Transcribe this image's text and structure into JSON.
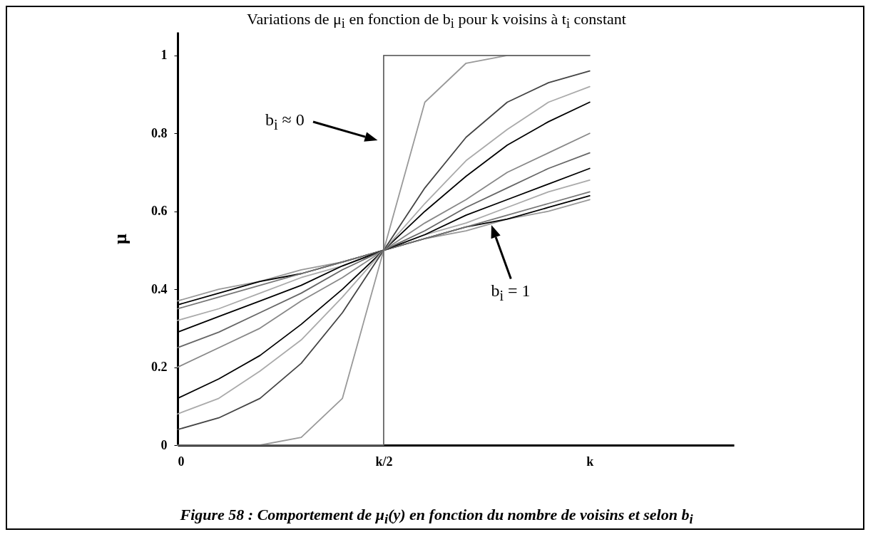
{
  "chart_data": {
    "type": "line",
    "title": "Variations de μ$_{i}$ en fonction de b$_{i}$ pour k voisins à t$_{i}$ constant",
    "ylabel": "μ",
    "categories": [
      "0",
      null,
      null,
      null,
      null,
      "k/2",
      null,
      null,
      null,
      null,
      "k"
    ],
    "series": [
      {
        "color": "#999999",
        "values": [
          0.37,
          0.4,
          0.42,
          0.45,
          0.47,
          0.5,
          0.53,
          0.55,
          0.58,
          0.6,
          0.63
        ]
      },
      {
        "color": "#000000",
        "values": [
          0.36,
          0.39,
          0.42,
          0.44,
          0.47,
          0.5,
          0.53,
          0.56,
          0.58,
          0.61,
          0.64
        ]
      },
      {
        "color": "#777777",
        "values": [
          0.35,
          0.38,
          0.41,
          0.44,
          0.47,
          0.5,
          0.53,
          0.56,
          0.59,
          0.62,
          0.65
        ]
      },
      {
        "color": "#aaaaaa",
        "values": [
          0.32,
          0.35,
          0.39,
          0.43,
          0.46,
          0.5,
          0.54,
          0.57,
          0.61,
          0.65,
          0.68
        ]
      },
      {
        "color": "#000000",
        "values": [
          0.29,
          0.33,
          0.37,
          0.41,
          0.46,
          0.5,
          0.54,
          0.59,
          0.63,
          0.67,
          0.71
        ]
      },
      {
        "color": "#666666",
        "values": [
          0.25,
          0.29,
          0.34,
          0.39,
          0.45,
          0.5,
          0.55,
          0.61,
          0.66,
          0.71,
          0.75
        ]
      },
      {
        "color": "#888888",
        "values": [
          0.2,
          0.25,
          0.3,
          0.37,
          0.43,
          0.5,
          0.57,
          0.63,
          0.7,
          0.75,
          0.8
        ]
      },
      {
        "color": "#000000",
        "values": [
          0.12,
          0.17,
          0.23,
          0.31,
          0.4,
          0.5,
          0.6,
          0.69,
          0.77,
          0.83,
          0.88
        ]
      },
      {
        "color": "#aaaaaa",
        "values": [
          0.08,
          0.12,
          0.19,
          0.27,
          0.38,
          0.5,
          0.62,
          0.73,
          0.81,
          0.88,
          0.92
        ]
      },
      {
        "color": "#444444",
        "values": [
          0.04,
          0.07,
          0.12,
          0.21,
          0.34,
          0.5,
          0.66,
          0.79,
          0.88,
          0.93,
          0.96
        ]
      },
      {
        "color": "#999999",
        "values": [
          0,
          0,
          0,
          0.02,
          0.12,
          0.5,
          0.88,
          0.98,
          1,
          1,
          1
        ]
      },
      {
        "type": "step",
        "color": "#666666",
        "values": [
          0,
          0,
          0,
          0,
          0,
          1,
          1,
          1,
          1,
          1,
          1
        ]
      }
    ],
    "ylim": [
      0,
      1.06
    ],
    "yticks": [
      0,
      0.2,
      0.4,
      0.6,
      0.8,
      1
    ],
    "grid": false,
    "legend": false,
    "marker": "none",
    "line_style": "solid",
    "annotations": [
      "b$_{i}$ ≈ 0",
      "b$_{i}$ = 1",
      "Figure 58 : Comportement de μ$_{i}$(y) en fonction du nombre de voisins et selon b$_{i}$"
    ]
  }
}
